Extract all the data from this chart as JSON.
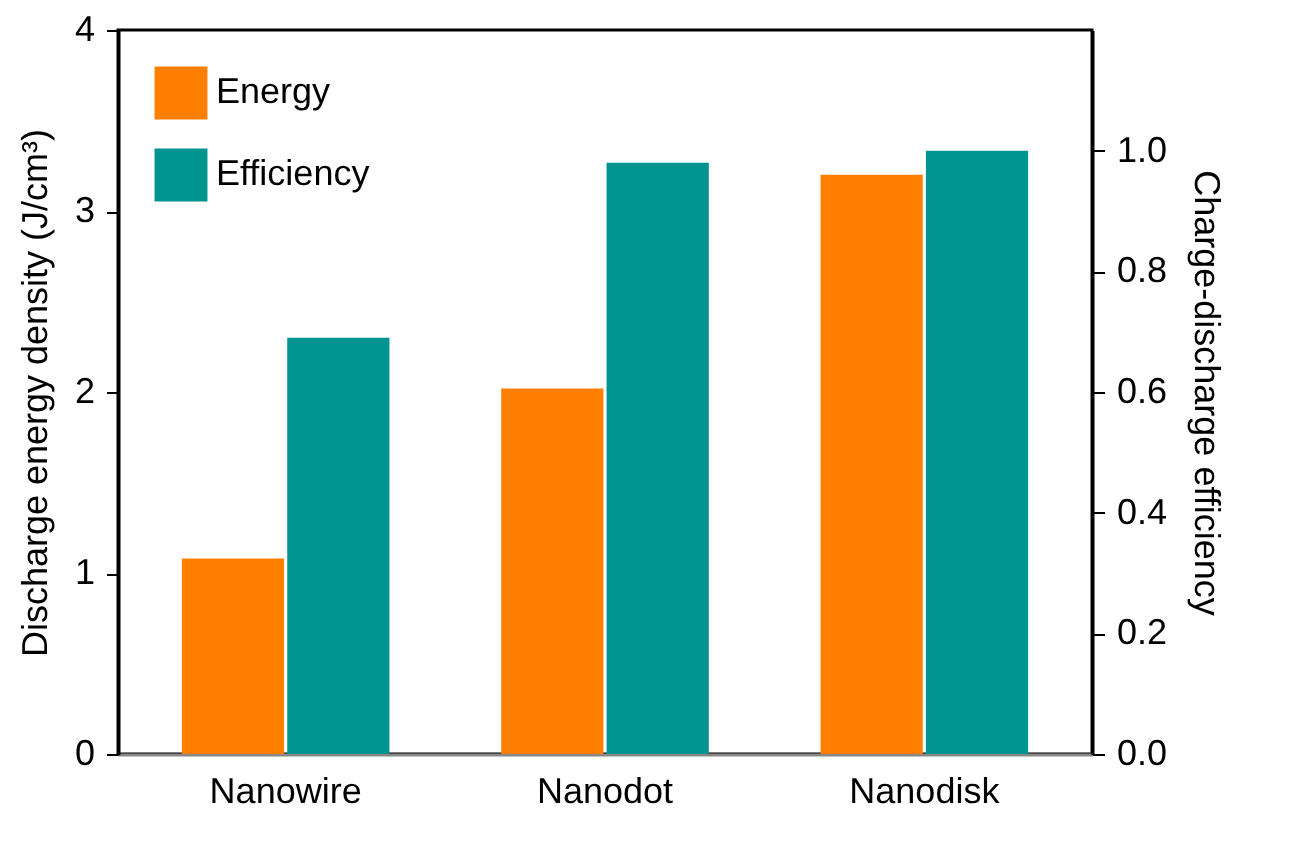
{
  "chart_data": {
    "type": "bar",
    "categories": [
      "Nanowire",
      "Nanodot",
      "Nanodisk"
    ],
    "series": [
      {
        "name": "Energy",
        "color": "#ff7f00",
        "values": [
          1.08,
          2.02,
          3.2
        ]
      },
      {
        "name": "Efficiency",
        "color": "#009490",
        "values": [
          0.69,
          0.98,
          1.0
        ],
        "axis": "y2"
      }
    ],
    "ylabel": "Discharge energy density (J/cm³)",
    "y2label": "Charge-discharge efficiency",
    "ylim": [
      0,
      4
    ],
    "yticks": [
      0,
      1,
      2,
      3,
      4
    ],
    "y2lim": [
      0,
      1.2
    ],
    "y2ticks": [
      {
        "value": 0,
        "label": "0.0"
      },
      {
        "value": 0.2,
        "label": "0.2"
      },
      {
        "value": 0.4,
        "label": "0.4"
      },
      {
        "value": 0.6,
        "label": "0.6"
      },
      {
        "value": 0.8,
        "label": "0.8"
      },
      {
        "value": 1,
        "label": "1.0"
      }
    ],
    "legend": "top left",
    "grid": false
  }
}
